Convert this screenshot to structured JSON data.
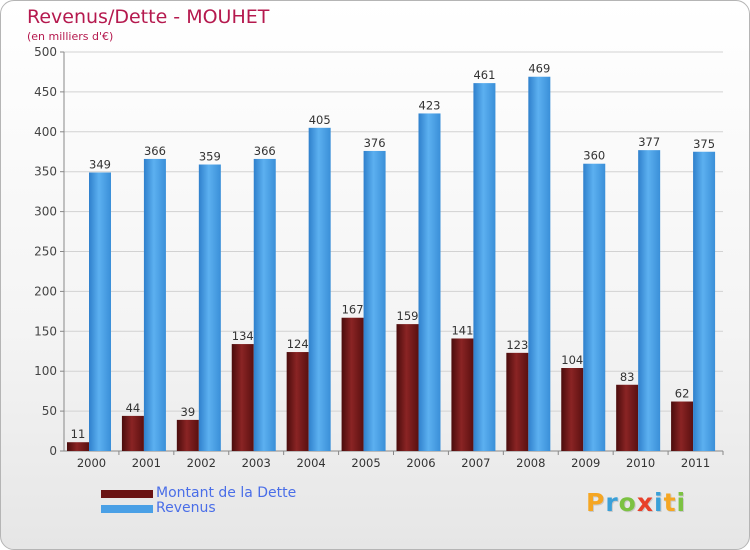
{
  "title": "Revenus/Dette - MOUHET",
  "subtitle": "(en milliers d'€)",
  "logo": {
    "text": "Proxiti",
    "colors": [
      "#f5a623",
      "#3aa0d8",
      "#7cc242",
      "#e8402a",
      "#3aa0d8",
      "#f5a623",
      "#7cc242"
    ]
  },
  "chart_data": {
    "type": "bar",
    "categories": [
      "2000",
      "2001",
      "2002",
      "2003",
      "2004",
      "2005",
      "2006",
      "2007",
      "2008",
      "2009",
      "2010",
      "2011"
    ],
    "series": [
      {
        "name": "Montant de la Dette",
        "color": "#7a1a1a",
        "values": [
          11,
          44,
          39,
          134,
          124,
          167,
          159,
          141,
          123,
          104,
          83,
          62
        ]
      },
      {
        "name": "Revenus",
        "color": "#4aa0e6",
        "values": [
          349,
          366,
          359,
          366,
          405,
          376,
          423,
          461,
          469,
          360,
          377,
          375
        ]
      }
    ],
    "ylim": [
      0,
      500
    ],
    "yticks": [
      0,
      50,
      100,
      150,
      200,
      250,
      300,
      350,
      400,
      450,
      500
    ],
    "grid": true,
    "legend": "bottom-left"
  }
}
